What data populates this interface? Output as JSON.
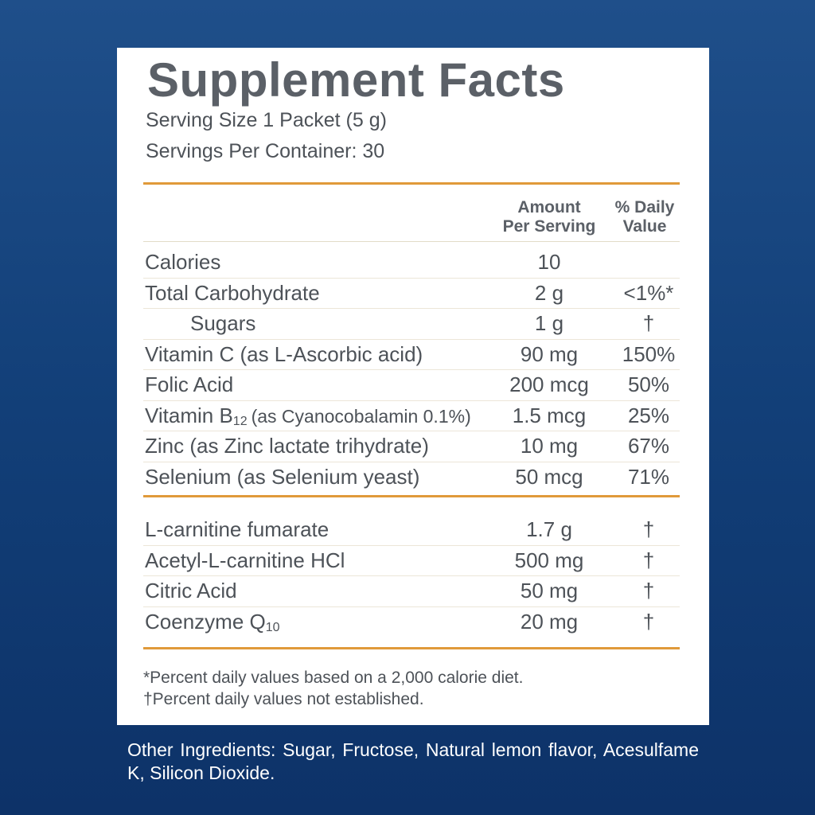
{
  "header": {
    "title": "Supplement Facts",
    "serving_size": "Serving Size 1 Packet (5 g)",
    "servings_per_container": "Servings Per Container: 30"
  },
  "table": {
    "columns": {
      "amount": [
        "Amount",
        "Per Serving"
      ],
      "dv": [
        "% Daily",
        "Value"
      ]
    },
    "groups": [
      [
        {
          "name": "Calories",
          "amount": "10"
        },
        {
          "name": "Total Carbohydrate",
          "amount": "2 g",
          "dv": "<1%*"
        },
        {
          "name": "Sugars",
          "amount": "1 g",
          "dv": "†",
          "indent": true
        },
        {
          "name": "Vitamin C (as L-Ascorbic acid)",
          "amount": "90 mg",
          "dv": "150%"
        },
        {
          "name": "Folic Acid",
          "amount": "200 mcg",
          "dv": "50%"
        },
        {
          "name": "Vitamin B",
          "name_sub": "12",
          "name_rest": "(as Cyanocobalamin 0.1%)",
          "amount": "1.5 mcg",
          "dv": "25%"
        },
        {
          "name": "Zinc (as Zinc lactate trihydrate)",
          "amount": "10 mg",
          "dv": "67%"
        },
        {
          "name": "Selenium (as Selenium yeast)",
          "amount": "50 mcg",
          "dv": "71%"
        }
      ],
      [
        {
          "name": "L-carnitine fumarate",
          "amount": "1.7 g",
          "dv": "†"
        },
        {
          "name": "Acetyl-L-carnitine HCl",
          "amount": "500 mg",
          "dv": "†"
        },
        {
          "name": "Citric Acid",
          "amount": "50 mg",
          "dv": "†"
        },
        {
          "name": "Coenzyme Q",
          "name_sub": "10",
          "amount": "20 mg",
          "dv": "†"
        }
      ]
    ]
  },
  "footnotes": [
    "*Percent daily values based on a 2,000 calorie diet.",
    "†Percent daily values not established."
  ],
  "other_ingredients": "Other Ingredients: Sugar, Fructose, Natural lemon flavor, Acesulfame K, Silicon Dioxide."
}
